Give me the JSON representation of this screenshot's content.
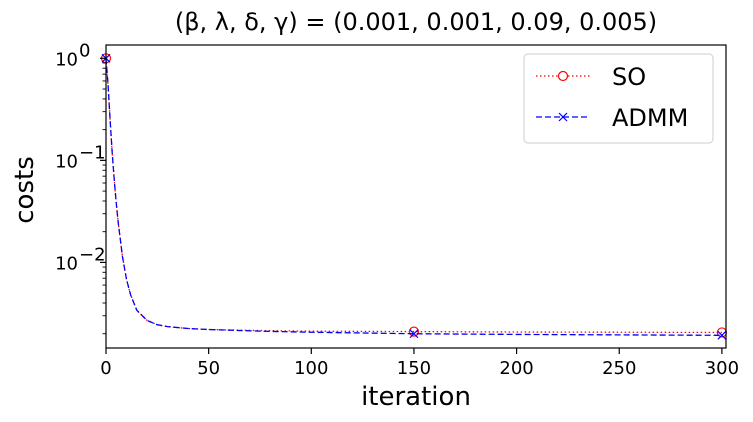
{
  "chart_data": {
    "type": "line",
    "title": "(β, λ, δ, γ) = (0.001, 0.001, 0.09, 0.005)",
    "xlabel": "iteration",
    "ylabel": "costs",
    "xlim": [
      0,
      302
    ],
    "ylim": [
      0.00145,
      1.35
    ],
    "yscale": "log",
    "xticks": [
      0,
      50,
      100,
      150,
      200,
      250,
      300
    ],
    "xtick_labels": [
      "0",
      "50",
      "100",
      "150",
      "200",
      "250",
      "300"
    ],
    "yticks": [
      0.01,
      0.1,
      1
    ],
    "ytick_labels": [
      {
        "base": "10",
        "exp": "−2"
      },
      {
        "base": "10",
        "exp": "−1"
      },
      {
        "base": "10",
        "exp": "0"
      }
    ],
    "grid": false,
    "legend_position": "upper right",
    "series": [
      {
        "name": "SO",
        "color": "#ff0000",
        "line_style": "dotted",
        "marker": "circle-open",
        "markers_at": [
          0,
          150,
          300
        ],
        "x": [
          0,
          1,
          2,
          3,
          4,
          5,
          6,
          8,
          10,
          12,
          15,
          20,
          25,
          30,
          40,
          50,
          75,
          100,
          150,
          200,
          250,
          300
        ],
        "y": [
          1.0,
          0.55,
          0.25,
          0.12,
          0.065,
          0.038,
          0.024,
          0.0115,
          0.0068,
          0.0048,
          0.0034,
          0.0027,
          0.00245,
          0.00235,
          0.00225,
          0.0022,
          0.00215,
          0.00212,
          0.0021,
          0.00208,
          0.00207,
          0.00206
        ]
      },
      {
        "name": "ADMM",
        "color": "#0000ff",
        "line_style": "dashed",
        "marker": "x",
        "markers_at": [
          0,
          150,
          300
        ],
        "x": [
          0,
          1,
          2,
          3,
          4,
          5,
          6,
          8,
          10,
          12,
          15,
          20,
          25,
          30,
          40,
          50,
          75,
          100,
          150,
          200,
          250,
          300
        ],
        "y": [
          1.0,
          0.55,
          0.25,
          0.12,
          0.065,
          0.038,
          0.024,
          0.0115,
          0.0068,
          0.0048,
          0.0034,
          0.0027,
          0.00245,
          0.00235,
          0.00225,
          0.0022,
          0.00212,
          0.00207,
          0.002,
          0.00197,
          0.00195,
          0.00193
        ]
      }
    ]
  }
}
